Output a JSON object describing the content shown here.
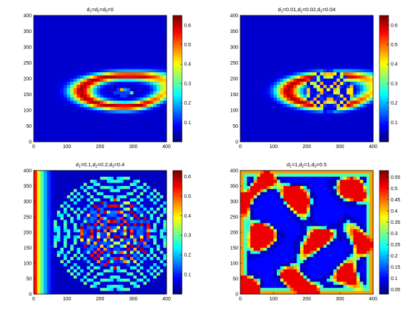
{
  "chart_data": [
    {
      "type": "heatmap",
      "title": "d1=d2=d3=0",
      "title_parts": [
        [
          "d",
          ""
        ],
        [
          "1",
          "sub"
        ],
        [
          "=d",
          ""
        ],
        [
          "2",
          "sub"
        ],
        [
          "=d",
          ""
        ],
        [
          "3",
          "sub"
        ],
        [
          "=0",
          ""
        ]
      ],
      "xlim": [
        0,
        400
      ],
      "ylim": [
        0,
        400
      ],
      "x_ticks": [
        0,
        100,
        200,
        300,
        400
      ],
      "y_ticks": [
        0,
        50,
        100,
        150,
        200,
        250,
        300,
        350,
        400
      ],
      "clim": [
        0,
        0.65
      ],
      "colorbar_ticks": [
        0.1,
        0.2,
        0.3,
        0.4,
        0.5,
        0.6
      ],
      "colormap": "jet",
      "pattern": "crescent band (red) around a small spiral core near (270,155)"
    },
    {
      "type": "heatmap",
      "title": "d1=0.01,d2=0.02,d3=0.04",
      "title_parts": [
        [
          "d",
          ""
        ],
        [
          "1",
          "sub"
        ],
        [
          "=0.01,d",
          ""
        ],
        [
          "2",
          "sub"
        ],
        [
          "=0.02,d",
          ""
        ],
        [
          "3",
          "sub"
        ],
        [
          "=0.04",
          ""
        ]
      ],
      "xlim": [
        0,
        400
      ],
      "ylim": [
        0,
        400
      ],
      "x_ticks": [
        0,
        100,
        200,
        300,
        400
      ],
      "y_ticks": [
        0,
        50,
        100,
        150,
        200,
        250,
        300,
        350,
        400
      ],
      "clim": [
        0,
        0.65
      ],
      "colorbar_ticks": [
        0.1,
        0.2,
        0.3,
        0.4,
        0.5,
        0.6
      ],
      "colormap": "jet",
      "pattern": "crescent band with expanding spiral rings centered near (270,160)"
    },
    {
      "type": "heatmap",
      "title": "d1=0.1,d2=0.2,d3=0.4",
      "title_parts": [
        [
          "d",
          ""
        ],
        [
          "1",
          "sub"
        ],
        [
          "=0.1,d",
          ""
        ],
        [
          "2",
          "sub"
        ],
        [
          "=0.2,d",
          ""
        ],
        [
          "3",
          "sub"
        ],
        [
          "=0.4",
          ""
        ]
      ],
      "xlim": [
        0,
        400
      ],
      "ylim": [
        0,
        400
      ],
      "x_ticks": [
        0,
        100,
        200,
        300,
        400
      ],
      "y_ticks": [
        0,
        50,
        100,
        150,
        200,
        250,
        300,
        350,
        400
      ],
      "clim": [
        0,
        0.63
      ],
      "colorbar_ticks": [
        0.1,
        0.2,
        0.3,
        0.4,
        0.5,
        0.6
      ],
      "colormap": "jet",
      "pattern": "concentric spiral waves filling the domain, centered near (250,200)"
    },
    {
      "type": "heatmap",
      "title": "d1=1,d2=1,d3=0.5",
      "title_parts": [
        [
          "d",
          ""
        ],
        [
          "1",
          "sub"
        ],
        [
          "=1,d",
          ""
        ],
        [
          "2",
          "sub"
        ],
        [
          "=1,d",
          ""
        ],
        [
          "3",
          "sub"
        ],
        [
          "=0.5",
          ""
        ]
      ],
      "xlim": [
        0,
        400
      ],
      "ylim": [
        0,
        400
      ],
      "x_ticks": [
        0,
        100,
        200,
        300,
        400
      ],
      "y_ticks": [
        0,
        50,
        100,
        150,
        200,
        250,
        300,
        350,
        400
      ],
      "clim": [
        0.03,
        0.58
      ],
      "colorbar_ticks": [
        0.05,
        0.1,
        0.15,
        0.2,
        0.25,
        0.3,
        0.35,
        0.4,
        0.45,
        0.5,
        0.55
      ],
      "colormap": "jet",
      "pattern": "turbulent labyrinthine pattern"
    }
  ]
}
